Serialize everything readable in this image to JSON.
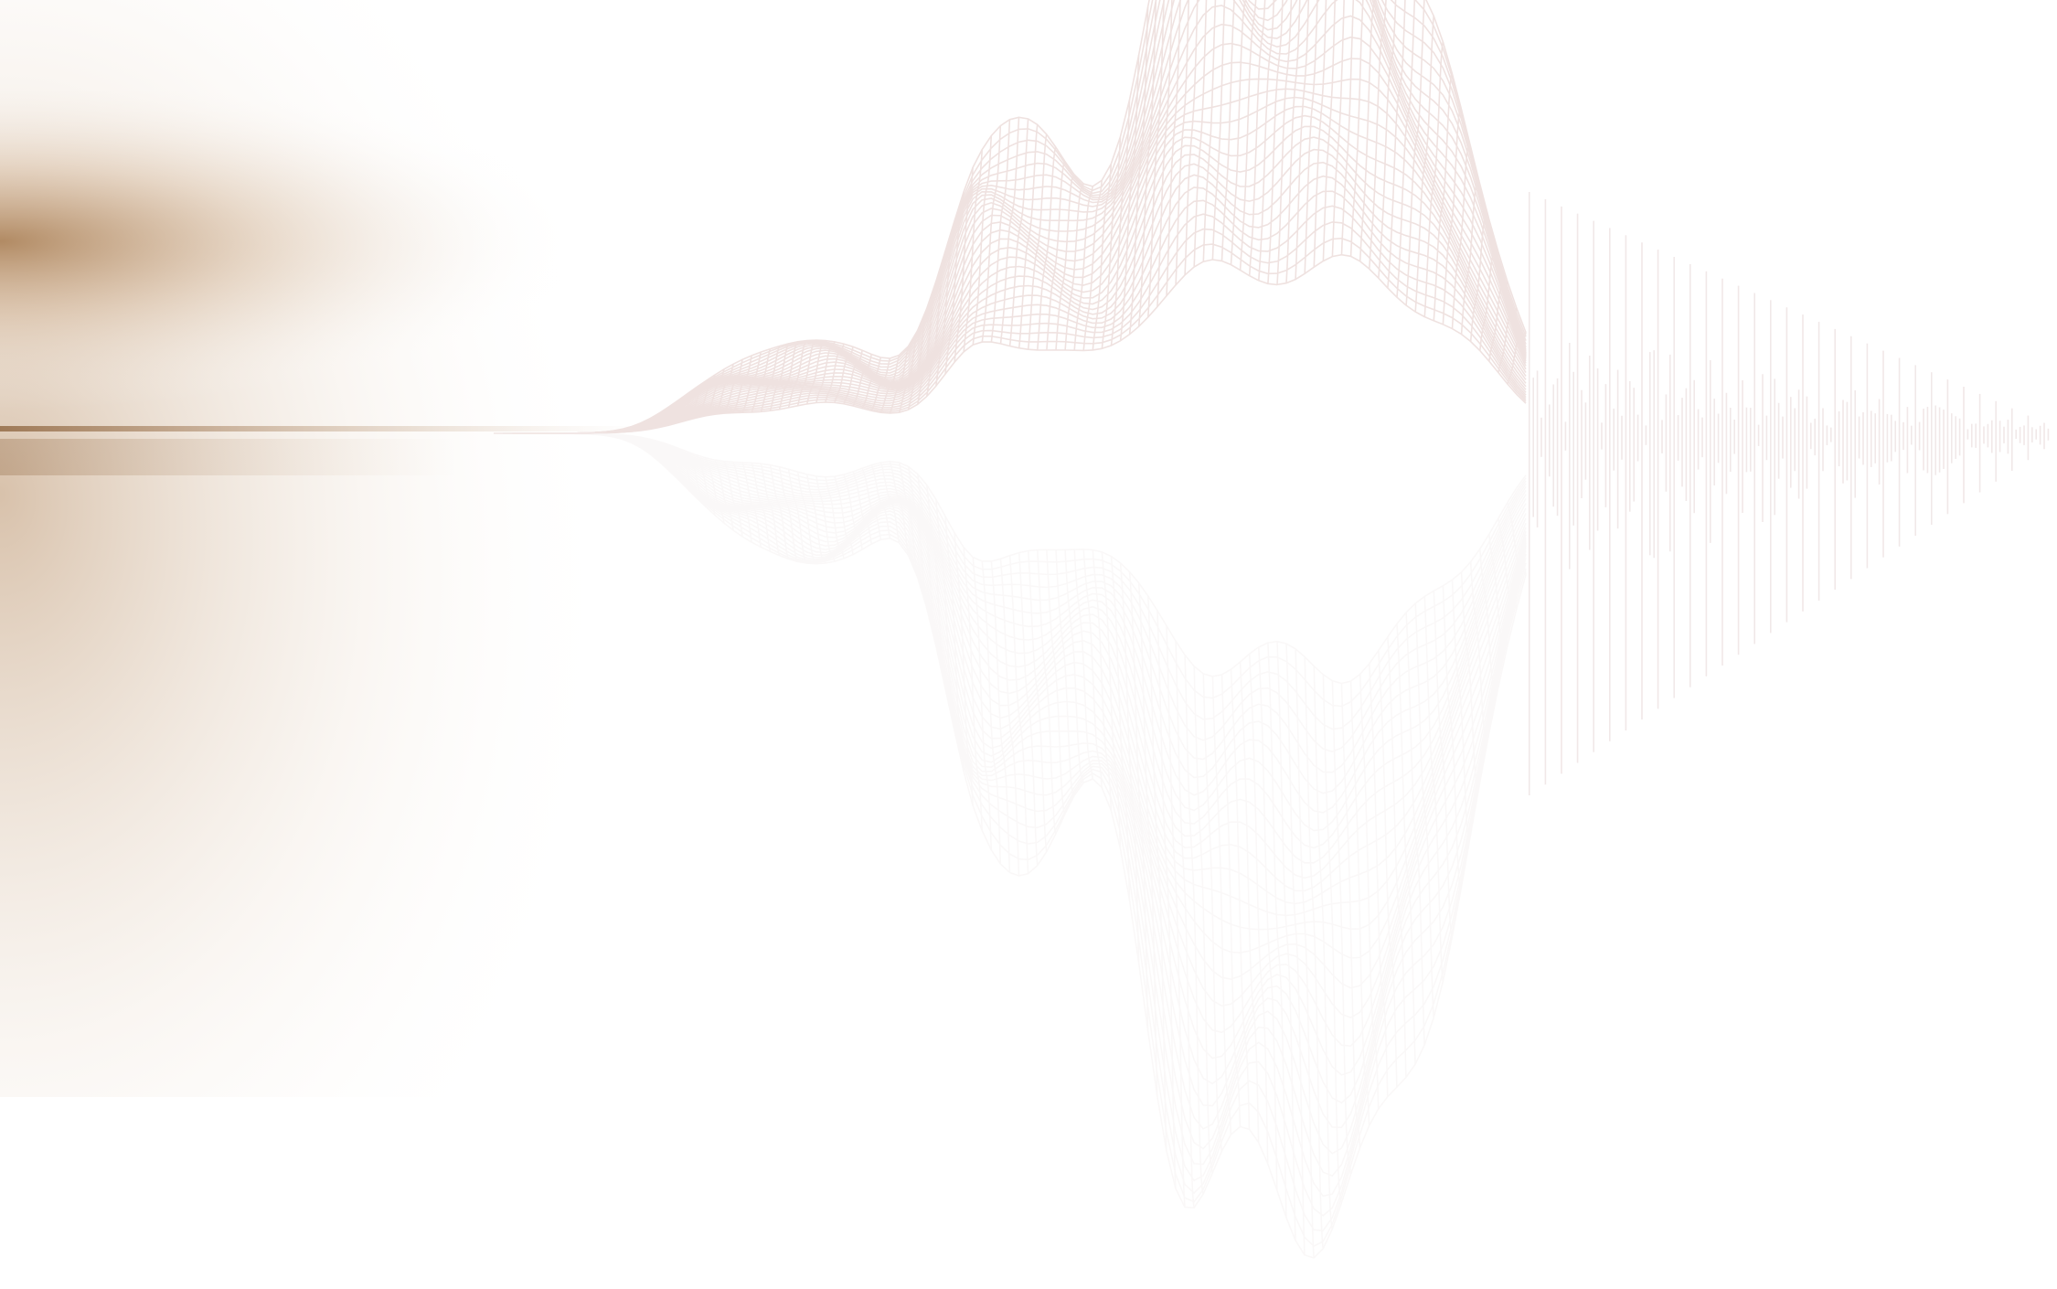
{
  "colors": {
    "background": "#ffffff",
    "glow": "#a67a4e",
    "mesh": "#efe2e0",
    "reflection": "#f6f1f0",
    "bars": "#f1e8e8"
  }
}
